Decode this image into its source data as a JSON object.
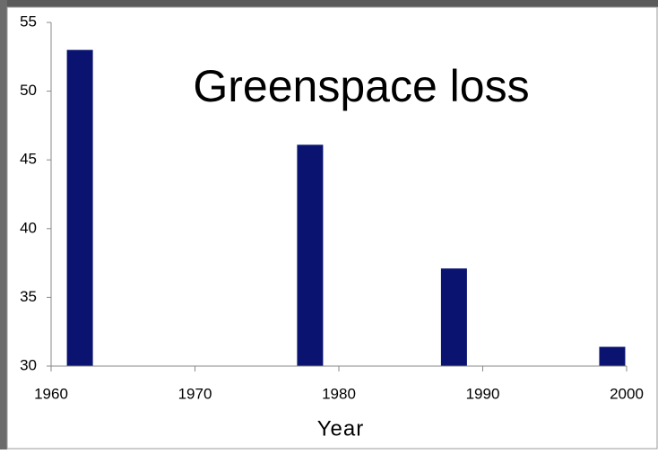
{
  "chart_data": {
    "type": "bar",
    "title": "Greenspace loss",
    "x_label": "Year",
    "x": [
      1962,
      1978,
      1988,
      1999
    ],
    "values": [
      53,
      46.1,
      37.1,
      31.4
    ],
    "color": "#0a1470",
    "xlim": [
      1960,
      2000
    ],
    "xticks": [
      1960,
      1970,
      1980,
      1990,
      2000
    ],
    "ylim": [
      30,
      55
    ],
    "yticks": [
      30,
      35,
      40,
      45,
      50,
      55
    ],
    "grid": false
  }
}
